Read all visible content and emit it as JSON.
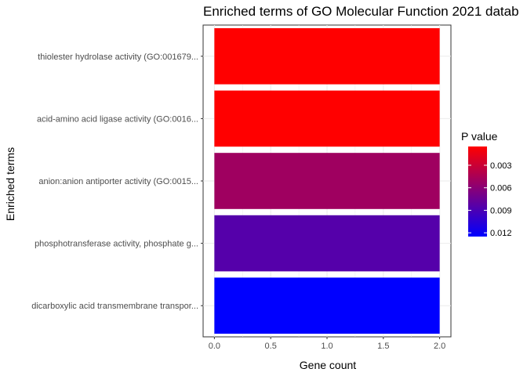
{
  "chart_data": {
    "type": "bar",
    "orientation": "horizontal",
    "title": "Enriched terms of GO Molecular Function 2021 datab",
    "xlabel": "Gene count",
    "ylabel": "Enriched terms",
    "xlim": [
      0,
      2
    ],
    "x_ticks": [
      "0.0",
      "0.5",
      "1.0",
      "1.5",
      "2.0"
    ],
    "grid": true,
    "categories": [
      "thiolester hydrolase activity (GO:001679...",
      "acid-amino acid ligase activity (GO:0016...",
      "anion:anion antiporter activity (GO:0015...",
      "phosphotransferase activity, phosphate g...",
      "dicarboxylic acid transmembrane transpor..."
    ],
    "values": [
      2,
      2,
      2,
      2,
      2
    ],
    "p_values": [
      0.0005,
      0.0005,
      0.005,
      0.0085,
      0.0125
    ],
    "legend": {
      "title": "P value",
      "position": "right",
      "labels": [
        "0.003",
        "0.006",
        "0.009",
        "0.012"
      ],
      "label_values": [
        0.003,
        0.006,
        0.009,
        0.012
      ],
      "range": [
        0.0005,
        0.0125
      ],
      "low_color": "#ff0000",
      "high_color": "#0000ff"
    }
  }
}
